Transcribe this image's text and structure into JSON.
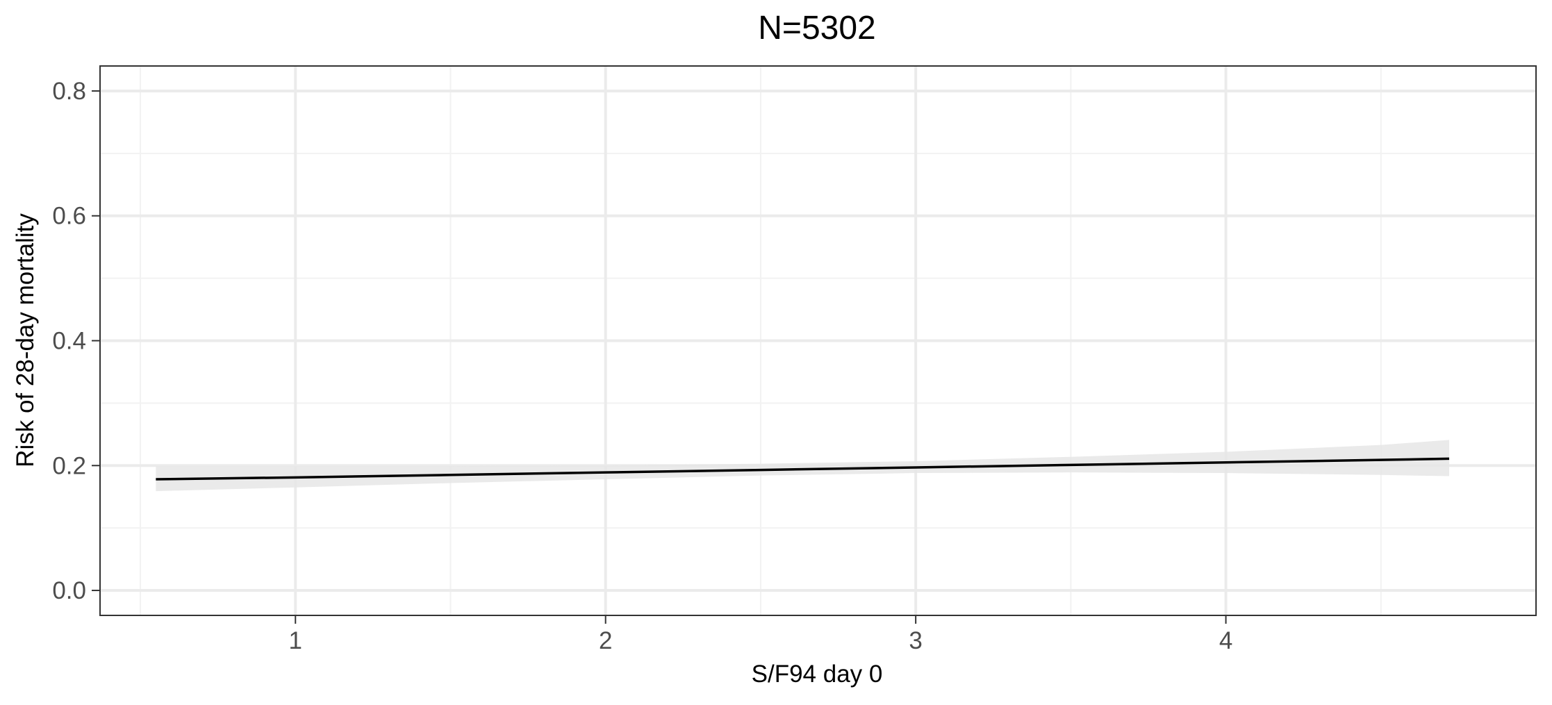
{
  "chart_data": {
    "type": "line",
    "title": "N=5302",
    "xlabel": "S/F94 day 0",
    "ylabel": "Risk of 28-day mortality",
    "xlim": [
      0.37,
      5.0
    ],
    "ylim": [
      -0.04,
      0.84
    ],
    "x_ticks": [
      1,
      2,
      3,
      4
    ],
    "x_tick_labels": [
      "1",
      "2",
      "3",
      "4"
    ],
    "x_minor_ticks": [
      0.5,
      1.5,
      2.5,
      3.5,
      4.5
    ],
    "y_ticks": [
      0.0,
      0.2,
      0.4,
      0.6,
      0.8
    ],
    "y_tick_labels": [
      "0.0",
      "0.2",
      "0.4",
      "0.6",
      "0.8"
    ],
    "y_minor_ticks": [
      0.1,
      0.3,
      0.5,
      0.7
    ],
    "grid": true,
    "series": [
      {
        "x": [
          0.55,
          1.0,
          1.5,
          2.0,
          2.5,
          3.0,
          3.5,
          4.0,
          4.5,
          4.72
        ],
        "y": [
          0.178,
          0.181,
          0.185,
          0.189,
          0.193,
          0.197,
          0.201,
          0.205,
          0.209,
          0.211
        ],
        "lower": [
          0.159,
          0.165,
          0.172,
          0.178,
          0.184,
          0.188,
          0.189,
          0.188,
          0.185,
          0.183
        ],
        "upper": [
          0.199,
          0.199,
          0.199,
          0.2,
          0.203,
          0.207,
          0.214,
          0.222,
          0.233,
          0.241
        ]
      }
    ],
    "colors": {
      "line": "#000000",
      "ribbon": "#e6e6e6",
      "grid_major": "#ebebeb",
      "grid_minor": "#f2f2f2",
      "panel_border": "#333333",
      "tick_text": "#4d4d4d",
      "axis_tick": "#333333"
    }
  }
}
